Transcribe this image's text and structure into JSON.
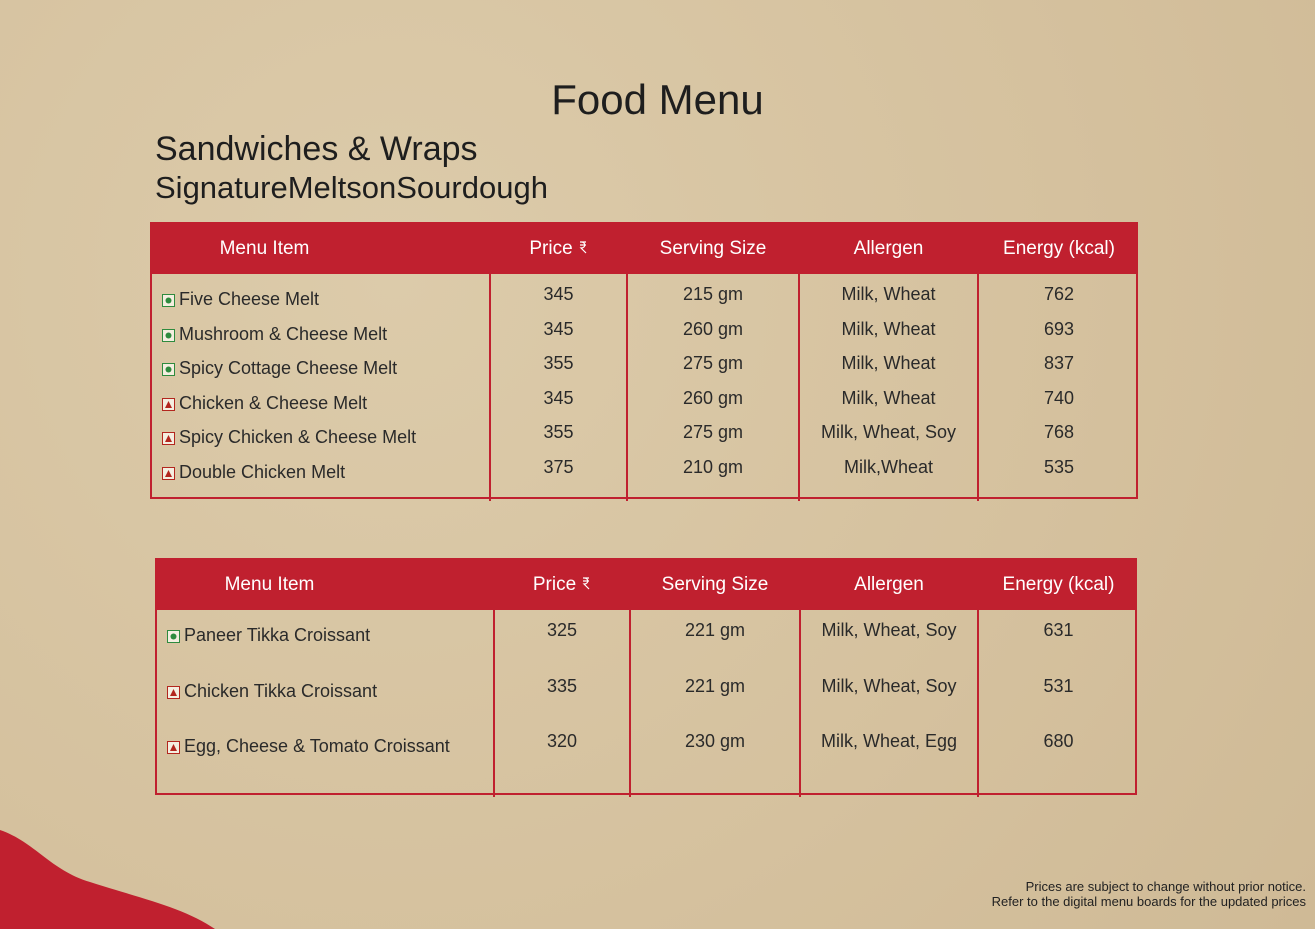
{
  "header": {
    "title": "Food Menu",
    "section": "Sandwiches & Wraps",
    "subtitle": "SignatureMeltsonSourdough"
  },
  "tables": [
    {
      "columns": [
        "Menu Item",
        "Price",
        "Serving Size",
        "Allergen",
        "Energy (kcal)"
      ],
      "rows": [
        {
          "diet": "veg",
          "item": "Five Cheese Melt",
          "price": 345,
          "serving": "215 gm",
          "allergen": "Milk, Wheat",
          "energy": 762
        },
        {
          "diet": "veg",
          "item": "Mushroom & Cheese Melt",
          "price": 345,
          "serving": "260 gm",
          "allergen": "Milk, Wheat",
          "energy": 693
        },
        {
          "diet": "veg",
          "item": "Spicy Cottage Cheese Melt",
          "price": 355,
          "serving": "275 gm",
          "allergen": "Milk, Wheat",
          "energy": 837
        },
        {
          "diet": "non-veg",
          "item": "Chicken & Cheese Melt",
          "price": 345,
          "serving": "260 gm",
          "allergen": "Milk, Wheat",
          "energy": 740
        },
        {
          "diet": "non-veg",
          "item": "Spicy Chicken & Cheese Melt",
          "price": 355,
          "serving": "275 gm",
          "allergen": "Milk, Wheat, Soy",
          "energy": 768
        },
        {
          "diet": "non-veg",
          "item": "Double Chicken Melt",
          "price": 375,
          "serving": "210 gm",
          "allergen": "Milk,Wheat",
          "energy": 535
        }
      ]
    },
    {
      "columns": [
        "Menu Item",
        "Price",
        "Serving Size",
        "Allergen",
        "Energy (kcal)"
      ],
      "rows": [
        {
          "diet": "veg",
          "item": "Paneer Tikka Croissant",
          "price": 325,
          "serving": "221 gm",
          "allergen": "Milk, Wheat, Soy",
          "energy": 631
        },
        {
          "diet": "non-veg",
          "item": "Chicken Tikka Croissant",
          "price": 335,
          "serving": "221 gm",
          "allergen": "Milk, Wheat, Soy",
          "energy": 531
        },
        {
          "diet": "non-veg",
          "item": "Egg, Cheese & Tomato Croissant",
          "price": 320,
          "serving": "230 gm",
          "allergen": "Milk, Wheat, Egg",
          "energy": 680
        }
      ]
    }
  ],
  "footer": {
    "notes": [
      "Prices are subject to change without prior notice.",
      "Refer to the digital menu boards for the updated prices"
    ]
  }
}
